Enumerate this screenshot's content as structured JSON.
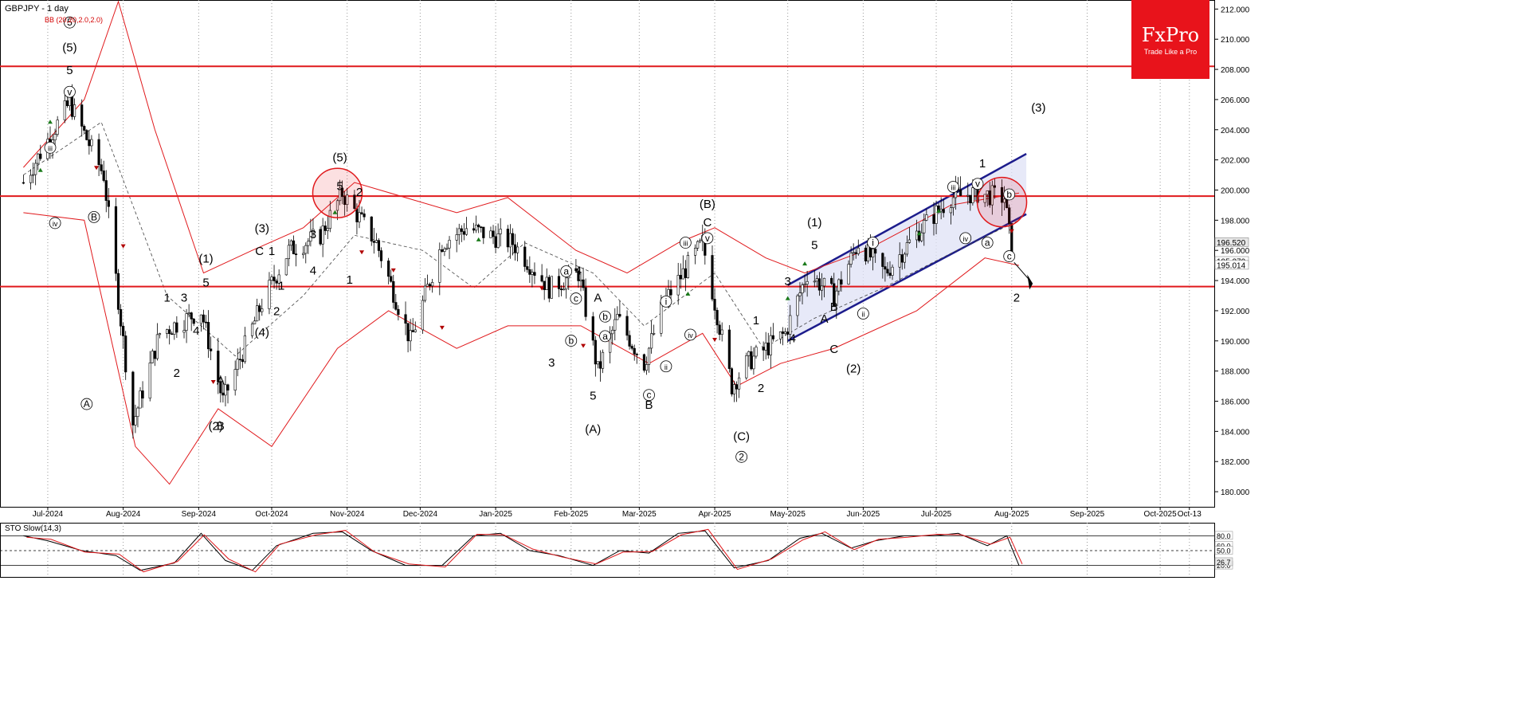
{
  "chart_data": {
    "type": "line",
    "title": "GBPJPY - 1 day",
    "indicator_label": "BB (20,20,2.0,2.0)",
    "y_axis": {
      "ticks": [
        "212.000",
        "210.000",
        "208.000",
        "206.000",
        "204.000",
        "202.000",
        "200.000",
        "198.000",
        "196.000",
        "194.000",
        "192.000",
        "190.000",
        "188.000",
        "186.000",
        "184.000",
        "182.000",
        "180.000"
      ],
      "ylim": [
        179.0,
        212.6
      ],
      "price_badges": [
        "196.520",
        "195.270",
        "195.014"
      ]
    },
    "x_axis": {
      "ticks": [
        "Jul-2024",
        "Aug-2024",
        "Sep-2024",
        "Oct-2024",
        "Nov-2024",
        "Dec-2024",
        "Jan-2025",
        "Feb-2025",
        "Mar-2025",
        "Apr-2025",
        "May-2025",
        "Jun-2025",
        "Jul-2025",
        "Aug-2025",
        "Sep-2025",
        "Oct-2025",
        "Oct-13"
      ]
    },
    "horizontal_lines": [
      208.2,
      199.6,
      193.6
    ],
    "series": [
      {
        "name": "close",
        "x": [
          "2024-06-21",
          "2024-07-10",
          "2024-07-24",
          "2024-08-05",
          "2024-08-16",
          "2024-09-02",
          "2024-09-11",
          "2024-09-27",
          "2024-10-08",
          "2024-10-21",
          "2024-10-30",
          "2024-11-13",
          "2024-11-27",
          "2024-12-10",
          "2024-12-20",
          "2025-01-08",
          "2025-01-23",
          "2025-02-04",
          "2025-02-12",
          "2025-02-20",
          "2025-03-03",
          "2025-03-11",
          "2025-03-27",
          "2025-04-08",
          "2025-04-14",
          "2025-04-22",
          "2025-04-30",
          "2025-05-09",
          "2025-05-20",
          "2025-05-30",
          "2025-06-10",
          "2025-06-25",
          "2025-07-07",
          "2025-07-17",
          "2025-07-29",
          "2025-08-01"
        ],
        "values": [
          200.5,
          205.8,
          201.0,
          184.5,
          190.5,
          192.0,
          186.0,
          192.5,
          196.0,
          197.0,
          199.8,
          196.5,
          190.0,
          196.5,
          197.5,
          196.5,
          193.5,
          194.5,
          188.0,
          191.5,
          188.5,
          192.5,
          196.5,
          187.0,
          188.5,
          189.5,
          190.5,
          194.5,
          193.0,
          196.5,
          194.5,
          197.5,
          199.5,
          199.8,
          199.5,
          196.0
        ]
      },
      {
        "name": "bb_mid",
        "x": [
          "2024-06-21",
          "2024-07-23",
          "2024-08-19",
          "2024-09-16",
          "2024-10-14",
          "2024-11-04",
          "2024-12-02",
          "2024-12-23",
          "2025-01-13",
          "2025-02-10",
          "2025-03-03",
          "2025-04-01",
          "2025-04-21",
          "2025-05-12",
          "2025-06-09",
          "2025-07-07",
          "2025-08-04"
        ],
        "values": [
          201.0,
          204.5,
          193.0,
          189.0,
          193.0,
          197.0,
          196.0,
          193.5,
          196.5,
          194.5,
          191.0,
          194.5,
          189.5,
          191.5,
          193.5,
          195.8,
          198.0
        ]
      },
      {
        "name": "bb_upper",
        "x": [
          "2024-06-21",
          "2024-07-16",
          "2024-07-30",
          "2024-08-14",
          "2024-09-03",
          "2024-09-23",
          "2024-10-14",
          "2024-11-04",
          "2024-11-25",
          "2024-12-16",
          "2025-01-06",
          "2025-02-03",
          "2025-02-24",
          "2025-03-17",
          "2025-04-01",
          "2025-04-22",
          "2025-05-08",
          "2025-06-02",
          "2025-07-07",
          "2025-08-04"
        ],
        "values": [
          201.5,
          206.0,
          212.5,
          204.0,
          194.5,
          196.0,
          197.5,
          200.5,
          199.5,
          198.5,
          199.5,
          196.0,
          194.5,
          196.5,
          197.5,
          195.5,
          194.5,
          196.0,
          199.0,
          199.8
        ]
      },
      {
        "name": "bb_lower",
        "x": [
          "2024-06-21",
          "2024-07-16",
          "2024-08-06",
          "2024-08-20",
          "2024-09-09",
          "2024-10-01",
          "2024-10-28",
          "2024-11-18",
          "2024-12-16",
          "2025-01-06",
          "2025-02-05",
          "2025-03-05",
          "2025-03-27",
          "2025-04-10",
          "2025-04-28",
          "2025-05-20",
          "2025-06-23",
          "2025-07-21",
          "2025-08-04"
        ],
        "values": [
          198.5,
          198.0,
          183.0,
          180.5,
          185.5,
          183.0,
          189.5,
          192.0,
          189.5,
          191.0,
          191.0,
          188.5,
          190.5,
          187.0,
          188.5,
          189.5,
          192.0,
          195.5,
          195.0
        ]
      },
      {
        "name": "channel_upper",
        "x": [
          "2025-05-01",
          "2025-08-07"
        ],
        "values": [
          193.7,
          202.4
        ]
      },
      {
        "name": "channel_lower",
        "x": [
          "2025-05-01",
          "2025-08-07"
        ],
        "values": [
          190.0,
          198.4
        ]
      }
    ],
    "wave_labels": [
      "5",
      "(5)",
      "5",
      "v",
      "iii",
      "iv",
      "B",
      "A",
      "C",
      "1",
      "3",
      "2",
      "4",
      "(1)",
      "5",
      "(2)",
      "B",
      "A",
      "(3)",
      "C",
      "(4)",
      "1",
      "2",
      "1",
      "3",
      "4",
      "(5)",
      "5",
      "2",
      "1",
      "a",
      "c",
      "4",
      "A",
      "b",
      "a",
      "b",
      "3",
      "5",
      "(A)",
      "c",
      "B",
      "iii",
      "i",
      "iv",
      "ii",
      "(B)",
      "C",
      "v",
      "1",
      "2",
      "(C)",
      "2",
      "3",
      "(1)",
      "5",
      "B",
      "A",
      "C",
      "4",
      "(2)",
      "i",
      "ii",
      "iii",
      "iv",
      "v",
      "1",
      "b",
      "a",
      "c",
      "2",
      "(3)"
    ],
    "stochastic": {
      "label": "STO Slow(14,3)",
      "ticks": [
        "80.0",
        "60.0",
        "50.0",
        "20.0"
      ],
      "badge": "26.7",
      "ylim": [
        0,
        100
      ],
      "x": [
        "2024-06-21",
        "2024-07-01",
        "2024-07-15",
        "2024-07-29",
        "2024-08-08",
        "2024-08-22",
        "2024-09-02",
        "2024-09-12",
        "2024-09-23",
        "2024-10-03",
        "2024-10-18",
        "2024-10-30",
        "2024-11-11",
        "2024-11-25",
        "2024-12-10",
        "2024-12-23",
        "2025-01-03",
        "2025-01-15",
        "2025-01-27",
        "2025-02-10",
        "2025-02-21",
        "2025-03-05",
        "2025-03-17",
        "2025-03-28",
        "2025-04-09",
        "2025-04-23",
        "2025-05-06",
        "2025-05-15",
        "2025-05-27",
        "2025-06-06",
        "2025-06-18",
        "2025-06-30",
        "2025-07-10",
        "2025-07-22",
        "2025-07-30",
        "2025-08-04"
      ],
      "values": [
        80,
        70,
        50,
        40,
        10,
        25,
        85,
        30,
        10,
        60,
        85,
        88,
        50,
        20,
        20,
        80,
        85,
        50,
        40,
        20,
        50,
        45,
        85,
        90,
        15,
        30,
        75,
        85,
        55,
        70,
        80,
        80,
        85,
        60,
        80,
        20
      ]
    }
  },
  "branding": {
    "name": "FxPro",
    "tagline": "Trade Like a Pro"
  }
}
